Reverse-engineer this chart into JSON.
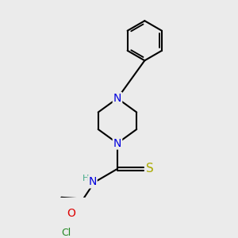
{
  "background_color": "#ebebeb",
  "bond_color": "#000000",
  "bond_width": 1.5,
  "atom_colors": {
    "N": "#0000dd",
    "O": "#dd0000",
    "S": "#aaaa00",
    "Cl": "#228822",
    "H_color": "#44aa88"
  },
  "font_size": 9,
  "fig_size": [
    3.0,
    3.0
  ],
  "dpi": 100
}
